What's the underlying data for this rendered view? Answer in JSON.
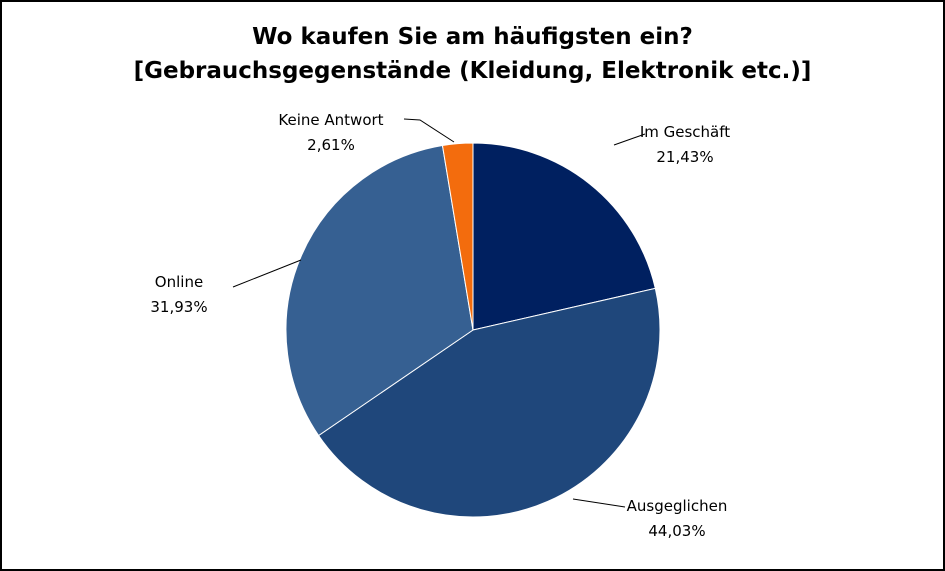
{
  "chart_data": {
    "type": "pie",
    "title": "Wo kaufen Sie am häufigsten ein?",
    "subtitle": "[Gebrauchsgegenstände (Kleidung, Elektronik etc.)]",
    "slices": [
      {
        "name": "Im Geschäft",
        "value": 21.43,
        "label": "21,43%",
        "color": "#002060"
      },
      {
        "name": "Ausgeglichen",
        "value": 44.03,
        "label": "44,03%",
        "color": "#1f477b"
      },
      {
        "name": "Online",
        "value": 31.93,
        "label": "31,93%",
        "color": "#366092"
      },
      {
        "name": "Keine Antwort",
        "value": 2.61,
        "label": "2,61%",
        "color": "#f36c0d"
      }
    ],
    "legend": "none",
    "grid": false
  }
}
